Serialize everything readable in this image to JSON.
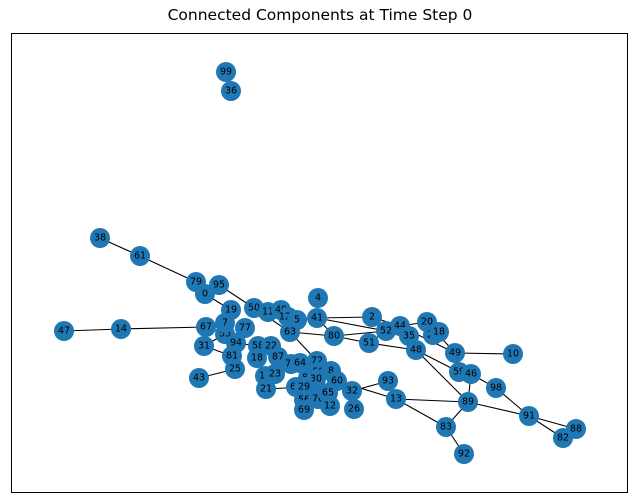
{
  "title": "Connected Components at Time Step 0",
  "colors": {
    "node": "#1f77b4",
    "edge": "#000000",
    "label": "#000000",
    "background": "#ffffff"
  },
  "nodes": [
    "99",
    "36",
    "38",
    "61",
    "79",
    "95",
    "0",
    "4",
    "47",
    "14",
    "67",
    "19",
    "50",
    "11",
    "40",
    "124",
    "5",
    "41",
    "2",
    "44",
    "20",
    "29",
    "18",
    "10",
    "49",
    "63",
    "80",
    "52",
    "35",
    "48",
    "51",
    "31",
    "55",
    "77",
    "7",
    "94",
    "58",
    "81",
    "18b",
    "25",
    "43",
    "15",
    "23",
    "22",
    "87",
    "74",
    "64",
    "72",
    "66",
    "84",
    "97",
    "30",
    "8",
    "60",
    "93",
    "62",
    "21",
    "29b",
    "56",
    "76",
    "65",
    "69",
    "12",
    "32",
    "26",
    "13",
    "59",
    "46",
    "98",
    "89",
    "83",
    "91",
    "88",
    "82",
    "92"
  ],
  "edges": [
    [
      "38",
      "61"
    ],
    [
      "61",
      "79"
    ],
    [
      "79",
      "0"
    ],
    [
      "0",
      "19"
    ],
    [
      "95",
      "50"
    ],
    [
      "47",
      "14"
    ],
    [
      "14",
      "67"
    ],
    [
      "4",
      "41"
    ],
    [
      "41",
      "52"
    ],
    [
      "41",
      "2"
    ],
    [
      "41",
      "80"
    ],
    [
      "2",
      "52"
    ],
    [
      "44",
      "35"
    ],
    [
      "44",
      "48"
    ],
    [
      "52",
      "51"
    ],
    [
      "80",
      "51"
    ],
    [
      "20",
      "49"
    ],
    [
      "49",
      "10"
    ],
    [
      "49",
      "59"
    ],
    [
      "48",
      "59"
    ],
    [
      "59",
      "46"
    ],
    [
      "46",
      "98"
    ],
    [
      "98",
      "91"
    ],
    [
      "89",
      "83"
    ],
    [
      "83",
      "92"
    ],
    [
      "89",
      "91"
    ],
    [
      "91",
      "88"
    ],
    [
      "91",
      "82"
    ],
    [
      "13",
      "89"
    ],
    [
      "13",
      "83"
    ],
    [
      "93",
      "32"
    ],
    [
      "60",
      "13"
    ],
    [
      "48",
      "89"
    ],
    [
      "46",
      "89"
    ],
    [
      "52",
      "35"
    ],
    [
      "31",
      "55"
    ],
    [
      "31",
      "81"
    ],
    [
      "43",
      "25"
    ],
    [
      "81",
      "25"
    ],
    [
      "63",
      "80"
    ],
    [
      "5",
      "41"
    ],
    [
      "124",
      "5"
    ],
    [
      "72",
      "60"
    ],
    [
      "64",
      "84"
    ],
    [
      "84",
      "65"
    ],
    [
      "65",
      "12"
    ],
    [
      "32",
      "26"
    ],
    [
      "56",
      "76"
    ],
    [
      "29b",
      "21"
    ],
    [
      "22",
      "87"
    ],
    [
      "58",
      "94"
    ],
    [
      "63",
      "72"
    ],
    [
      "50",
      "63"
    ],
    [
      "11",
      "5"
    ],
    [
      "40",
      "5"
    ],
    [
      "19",
      "7"
    ],
    [
      "67",
      "55"
    ],
    [
      "80",
      "52"
    ],
    [
      "2",
      "44"
    ],
    [
      "44",
      "20"
    ],
    [
      "44",
      "49"
    ],
    [
      "51",
      "48"
    ]
  ]
}
